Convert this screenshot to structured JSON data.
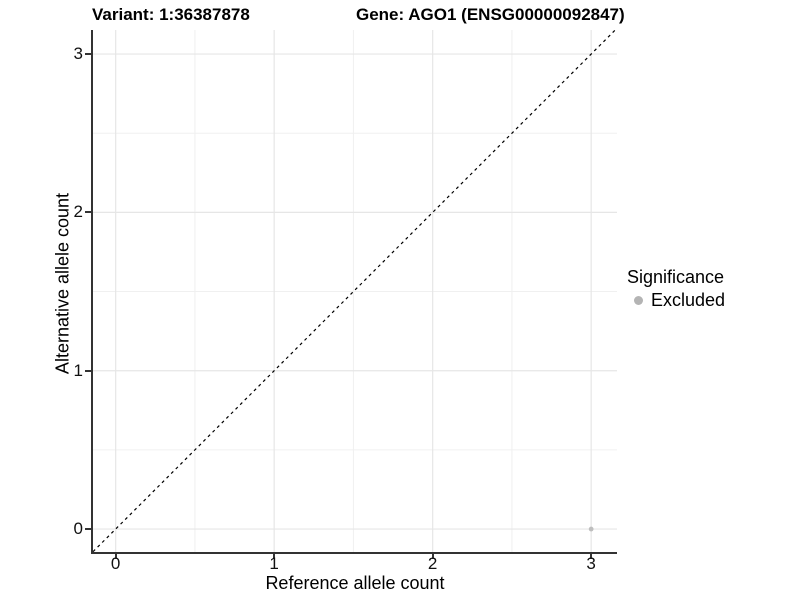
{
  "titles": {
    "variant": "Variant: 1:36387878",
    "gene": "Gene: AGO1 (ENSG00000092847)"
  },
  "chart_data": {
    "type": "scatter",
    "xlabel": "Reference allele count",
    "ylabel": "Alternative allele count",
    "xlim": [
      -0.143,
      3.163
    ],
    "ylim": [
      -0.145,
      3.152
    ],
    "x_ticks": [
      0,
      1,
      2,
      3
    ],
    "y_ticks": [
      0,
      1,
      2,
      3
    ],
    "x_minor_ticks": [
      0.5,
      1.5,
      2.5
    ],
    "y_minor_ticks": [
      0.5,
      1.5,
      2.5
    ],
    "grid": true,
    "grid_major_color": "#e6e6e6",
    "grid_minor_color": "#f0f0f0",
    "axis_line_color": "#333333",
    "tick_color": "#333333",
    "identity_line": {
      "style": "dashed",
      "color": "#000000"
    },
    "series": [
      {
        "name": "Excluded",
        "color": "#bebebe",
        "points": [
          {
            "x": 3,
            "y": 0
          }
        ]
      }
    ],
    "legend": {
      "title": "Significance",
      "position": "right",
      "entries": [
        {
          "label": "Excluded",
          "color": "#b4b4b4"
        }
      ]
    }
  }
}
